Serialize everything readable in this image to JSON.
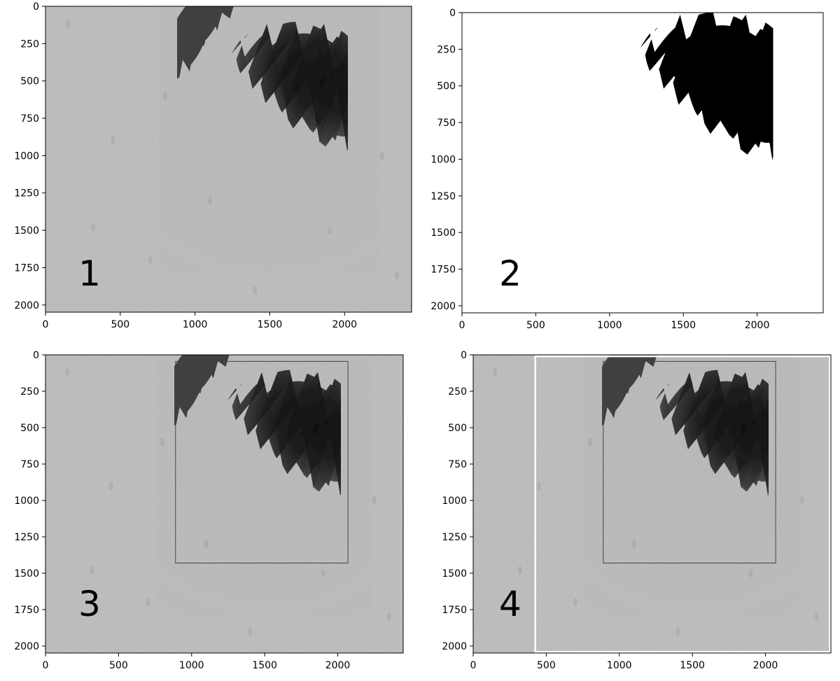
{
  "panels": [
    {
      "id": "1",
      "label": "1",
      "image_kind": "grayscale-micrograph",
      "xlim": [
        0,
        2448
      ],
      "ylim": [
        2048,
        0
      ],
      "x_ticks": [
        0,
        500,
        1000,
        1500,
        2000
      ],
      "y_ticks": [
        0,
        250,
        500,
        750,
        1000,
        1250,
        1500,
        1750,
        2000
      ],
      "bounding_box": null,
      "crop_box": null
    },
    {
      "id": "2",
      "label": "2",
      "image_kind": "binary-mask",
      "xlim": [
        0,
        2448
      ],
      "ylim": [
        2048,
        0
      ],
      "x_ticks": [
        0,
        500,
        1000,
        1500,
        2000
      ],
      "y_ticks": [
        0,
        250,
        500,
        750,
        1000,
        1250,
        1500,
        1750,
        2000
      ],
      "bounding_box": null,
      "crop_box": null
    },
    {
      "id": "3",
      "label": "3",
      "image_kind": "grayscale-micrograph",
      "xlim": [
        0,
        2448
      ],
      "ylim": [
        2048,
        0
      ],
      "x_ticks": [
        0,
        500,
        1000,
        1500,
        2000
      ],
      "y_ticks": [
        0,
        250,
        500,
        750,
        1000,
        1250,
        1500,
        1750,
        2000
      ],
      "bounding_box": {
        "x0": 890,
        "y0": 45,
        "x1": 2070,
        "y1": 1430,
        "color": "#444444"
      },
      "crop_box": null
    },
    {
      "id": "4",
      "label": "4",
      "image_kind": "grayscale-micrograph",
      "xlim": [
        0,
        2448
      ],
      "ylim": [
        2048,
        0
      ],
      "x_ticks": [
        0,
        500,
        1000,
        1500,
        2000
      ],
      "y_ticks": [
        0,
        250,
        500,
        750,
        1000,
        1250,
        1500,
        1750,
        2000
      ],
      "bounding_box": {
        "x0": 890,
        "y0": 45,
        "x1": 2070,
        "y1": 1430,
        "color": "#444444"
      },
      "crop_box": {
        "x0": 425,
        "y0": 10,
        "x1": 2440,
        "y1": 2040,
        "color": "#ffffff"
      }
    }
  ],
  "colors": {
    "background": "#c8c8c8",
    "spheroid_core": "#141414",
    "spheroid_mid": "#404040",
    "mask_fill": "#000000",
    "mask_background": "#ffffff"
  }
}
